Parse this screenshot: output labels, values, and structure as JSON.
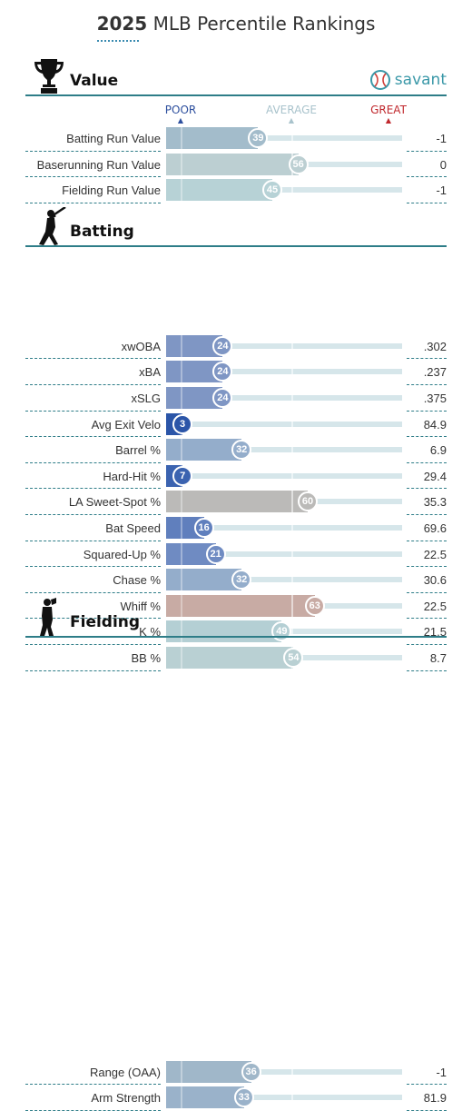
{
  "title": {
    "year": "2025",
    "text": "MLB Percentile Rankings"
  },
  "legend": {
    "poor": "POOR",
    "average": "AVERAGE",
    "great": "GREAT"
  },
  "brand": {
    "name": "savant",
    "color": "#3a98a8"
  },
  "sections": [
    {
      "title": "Value",
      "icon": "trophy-icon",
      "rows": [
        {
          "label": "Batting Run Value",
          "percentile": 39,
          "value": "-1",
          "color": "#a3bccb"
        },
        {
          "label": "Baserunning Run Value",
          "percentile": 56,
          "value": "0",
          "color": "#bccfd2"
        },
        {
          "label": "Fielding Run Value",
          "percentile": 45,
          "value": "-1",
          "color": "#b7d2d6"
        }
      ]
    },
    {
      "title": "Batting",
      "icon": "batter-icon",
      "rows": [
        {
          "label": "xwOBA",
          "percentile": 24,
          "value": ".302",
          "color": "#7f96c4"
        },
        {
          "label": "xBA",
          "percentile": 24,
          "value": ".237",
          "color": "#7f96c4"
        },
        {
          "label": "xSLG",
          "percentile": 24,
          "value": ".375",
          "color": "#7f96c4"
        },
        {
          "label": "Avg Exit Velo",
          "percentile": 3,
          "value": "84.9",
          "color": "#2b55a8"
        },
        {
          "label": "Barrel %",
          "percentile": 32,
          "value": "6.9",
          "color": "#94adcb"
        },
        {
          "label": "Hard-Hit %",
          "percentile": 7,
          "value": "29.4",
          "color": "#3b63b0"
        },
        {
          "label": "LA Sweet-Spot %",
          "percentile": 60,
          "value": "35.3",
          "color": "#bbbab8"
        },
        {
          "label": "Bat Speed",
          "percentile": 16,
          "value": "69.6",
          "color": "#607fbd"
        },
        {
          "label": "Squared-Up %",
          "percentile": 21,
          "value": "22.5",
          "color": "#6f8bc2"
        },
        {
          "label": "Chase %",
          "percentile": 32,
          "value": "30.6",
          "color": "#94adcb"
        },
        {
          "label": "Whiff %",
          "percentile": 63,
          "value": "22.5",
          "color": "#c8aba4"
        },
        {
          "label": "K %",
          "percentile": 49,
          "value": "21.5",
          "color": "#b4cfd4"
        },
        {
          "label": "BB %",
          "percentile": 54,
          "value": "8.7",
          "color": "#b9d0d3"
        }
      ]
    },
    {
      "title": "Fielding",
      "icon": "fielder-icon",
      "rows": [
        {
          "label": "Range (OAA)",
          "percentile": 36,
          "value": "-1",
          "color": "#a0b7c9"
        },
        {
          "label": "Arm Strength",
          "percentile": 33,
          "value": "81.9",
          "color": "#9ab2ca"
        }
      ]
    }
  ]
}
